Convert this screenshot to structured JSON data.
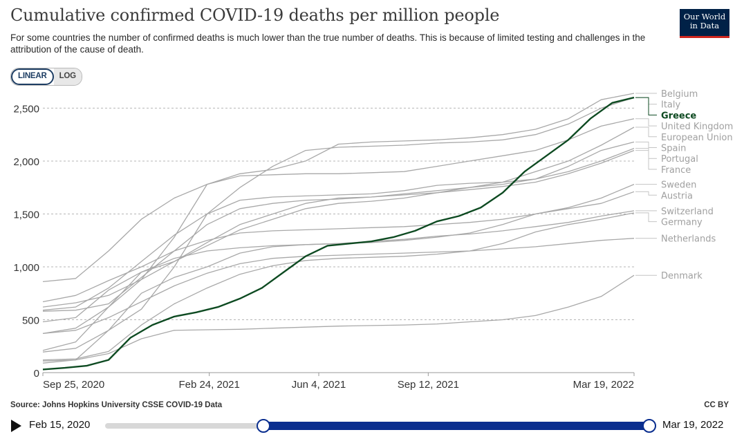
{
  "header": {
    "title": "Cumulative confirmed COVID-19 deaths per million people",
    "subtitle": "For some countries the number of confirmed deaths is much lower than the true number of deaths. This is because of limited testing and challenges in the attribution of the cause of death.",
    "logo_line1": "Our World",
    "logo_line2": "in Data"
  },
  "scale_toggle": {
    "linear_label": "LINEAR",
    "log_label": "LOG",
    "selected": "LINEAR"
  },
  "footer": {
    "source": "Source: Johns Hopkins University CSSE COVID-19 Data",
    "license": "CC BY"
  },
  "timeline": {
    "start_label": "Feb 15, 2020",
    "end_label": "Mar 19, 2022",
    "range_start_fraction": 0.29,
    "range_end_fraction": 1.0
  },
  "colors": {
    "highlight": "#0d4a21",
    "series": "#a8a8a8",
    "grid": "#b5b5b5",
    "axis_text": "#333333",
    "label_muted": "#a0a0a0",
    "slider": "#0a2e8f"
  },
  "chart_data": {
    "type": "line",
    "title": "Cumulative confirmed COVID-19 deaths per million people",
    "xlabel": "",
    "ylabel": "",
    "ylim": [
      0,
      2500
    ],
    "yticks": [
      0,
      500,
      1000,
      1500,
      2000,
      2500
    ],
    "ytick_labels": [
      "0",
      "500",
      "1,000",
      "1,500",
      "2,000",
      "2,500"
    ],
    "xlim_days": [
      0,
      540
    ],
    "xticks": [
      {
        "day": 0,
        "label": "Sep 25, 2020"
      },
      {
        "day": 152,
        "label": "Feb 24, 2021"
      },
      {
        "day": 252,
        "label": "Jun 4, 2021"
      },
      {
        "day": 352,
        "label": "Sep 12, 2021"
      },
      {
        "day": 540,
        "label": "Mar 19, 2022"
      }
    ],
    "highlighted": "Greece",
    "series": [
      {
        "name": "Belgium",
        "x": [
          0,
          30,
          60,
          90,
          120,
          150,
          180,
          210,
          240,
          270,
          300,
          330,
          360,
          390,
          420,
          450,
          480,
          510,
          540
        ],
        "values": [
          860,
          890,
          1150,
          1450,
          1650,
          1780,
          1880,
          1920,
          2000,
          2160,
          2180,
          2190,
          2200,
          2220,
          2250,
          2300,
          2400,
          2580,
          2640
        ]
      },
      {
        "name": "Italy",
        "x": [
          0,
          30,
          60,
          90,
          120,
          150,
          180,
          210,
          240,
          270,
          300,
          330,
          360,
          390,
          420,
          450,
          480,
          510,
          540
        ],
        "values": [
          590,
          620,
          800,
          1050,
          1300,
          1500,
          1750,
          1950,
          2100,
          2130,
          2140,
          2150,
          2170,
          2180,
          2200,
          2250,
          2350,
          2500,
          2600
        ]
      },
      {
        "name": "Greece",
        "x": [
          0,
          20,
          40,
          60,
          80,
          100,
          120,
          140,
          160,
          180,
          200,
          220,
          240,
          260,
          280,
          300,
          320,
          340,
          360,
          380,
          400,
          420,
          440,
          460,
          480,
          500,
          520,
          540
        ],
        "values": [
          30,
          45,
          65,
          120,
          330,
          450,
          530,
          570,
          620,
          700,
          800,
          950,
          1100,
          1200,
          1220,
          1240,
          1280,
          1340,
          1430,
          1480,
          1560,
          1700,
          1900,
          2050,
          2200,
          2400,
          2550,
          2600
        ]
      },
      {
        "name": "United Kingdom",
        "x": [
          0,
          30,
          60,
          90,
          120,
          150,
          180,
          210,
          240,
          270,
          300,
          330,
          360,
          390,
          420,
          450,
          480,
          510,
          540
        ],
        "values": [
          620,
          660,
          730,
          880,
          1280,
          1780,
          1860,
          1870,
          1880,
          1880,
          1890,
          1900,
          1950,
          2000,
          2050,
          2100,
          2200,
          2330,
          2400
        ]
      },
      {
        "name": "European Union",
        "x": [
          0,
          30,
          60,
          90,
          120,
          150,
          180,
          210,
          240,
          270,
          300,
          330,
          360,
          390,
          420,
          450,
          480,
          510,
          540
        ],
        "values": [
          370,
          420,
          620,
          880,
          1050,
          1200,
          1350,
          1450,
          1550,
          1600,
          1620,
          1650,
          1700,
          1750,
          1800,
          1900,
          2000,
          2150,
          2320
        ]
      },
      {
        "name": "Spain",
        "x": [
          0,
          30,
          60,
          90,
          120,
          150,
          180,
          210,
          240,
          270,
          300,
          330,
          360,
          390,
          420,
          450,
          480,
          510,
          540
        ],
        "values": [
          670,
          730,
          870,
          1000,
          1150,
          1400,
          1550,
          1600,
          1630,
          1640,
          1660,
          1690,
          1720,
          1750,
          1780,
          1830,
          1950,
          2100,
          2180
        ]
      },
      {
        "name": "Portugal",
        "x": [
          0,
          30,
          60,
          90,
          120,
          150,
          180,
          210,
          240,
          270,
          300,
          330,
          360,
          390,
          420,
          450,
          480,
          510,
          540
        ],
        "values": [
          195,
          230,
          400,
          600,
          1000,
          1500,
          1630,
          1660,
          1670,
          1680,
          1690,
          1720,
          1770,
          1790,
          1800,
          1830,
          1900,
          2000,
          2120
        ]
      },
      {
        "name": "France",
        "x": [
          0,
          30,
          60,
          90,
          120,
          150,
          180,
          210,
          240,
          270,
          300,
          330,
          360,
          390,
          420,
          450,
          480,
          510,
          540
        ],
        "values": [
          480,
          520,
          780,
          950,
          1050,
          1230,
          1400,
          1500,
          1600,
          1650,
          1660,
          1680,
          1700,
          1730,
          1760,
          1800,
          1880,
          1980,
          2100
        ]
      },
      {
        "name": "Sweden",
        "x": [
          0,
          30,
          60,
          90,
          120,
          150,
          180,
          210,
          240,
          270,
          300,
          330,
          360,
          390,
          420,
          450,
          480,
          510,
          540
        ],
        "values": [
          580,
          590,
          650,
          900,
          1150,
          1250,
          1320,
          1340,
          1350,
          1360,
          1370,
          1380,
          1400,
          1420,
          1450,
          1500,
          1560,
          1650,
          1780
        ]
      },
      {
        "name": "Austria",
        "x": [
          0,
          30,
          60,
          90,
          120,
          150,
          180,
          210,
          240,
          270,
          300,
          330,
          360,
          390,
          420,
          450,
          480,
          510,
          540
        ],
        "values": [
          90,
          120,
          400,
          750,
          900,
          1000,
          1130,
          1190,
          1210,
          1220,
          1230,
          1250,
          1280,
          1320,
          1400,
          1500,
          1550,
          1600,
          1710
        ]
      },
      {
        "name": "Switzerland",
        "x": [
          0,
          30,
          60,
          90,
          120,
          150,
          180,
          210,
          240,
          270,
          300,
          330,
          360,
          390,
          420,
          450,
          480,
          510,
          540
        ],
        "values": [
          210,
          290,
          620,
          950,
          1080,
          1150,
          1180,
          1200,
          1210,
          1220,
          1240,
          1260,
          1290,
          1310,
          1340,
          1380,
          1420,
          1480,
          1530
        ]
      },
      {
        "name": "Germany",
        "x": [
          0,
          30,
          60,
          90,
          120,
          150,
          180,
          210,
          240,
          270,
          300,
          330,
          360,
          390,
          420,
          450,
          480,
          510,
          540
        ],
        "values": [
          120,
          130,
          200,
          450,
          650,
          800,
          930,
          1010,
          1060,
          1080,
          1090,
          1100,
          1120,
          1150,
          1220,
          1330,
          1400,
          1450,
          1510
        ]
      },
      {
        "name": "Netherlands",
        "x": [
          0,
          30,
          60,
          90,
          120,
          150,
          180,
          210,
          240,
          270,
          300,
          330,
          360,
          390,
          420,
          450,
          480,
          510,
          540
        ],
        "values": [
          370,
          400,
          520,
          670,
          820,
          940,
          1030,
          1080,
          1100,
          1110,
          1120,
          1130,
          1140,
          1150,
          1170,
          1190,
          1220,
          1250,
          1270
        ]
      },
      {
        "name": "Denmark",
        "x": [
          0,
          30,
          60,
          90,
          120,
          150,
          180,
          210,
          240,
          270,
          300,
          330,
          360,
          390,
          420,
          450,
          480,
          510,
          540
        ],
        "values": [
          110,
          120,
          180,
          320,
          400,
          405,
          410,
          420,
          430,
          440,
          445,
          450,
          460,
          480,
          500,
          540,
          620,
          720,
          920
        ]
      }
    ]
  }
}
